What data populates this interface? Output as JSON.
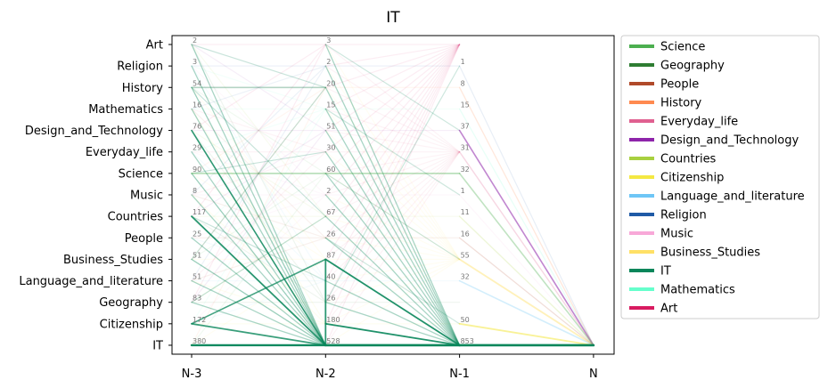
{
  "chart_data": {
    "type": "line",
    "title": "IT",
    "x": [
      "N-3",
      "N-2",
      "N-1",
      "N"
    ],
    "y_categories": [
      "Art",
      "Religion",
      "History",
      "Mathematics",
      "Design_and_Technology",
      "Everyday_life",
      "Science",
      "Music",
      "Countries",
      "People",
      "Business_Studies",
      "Language_and_literature",
      "Geography",
      "Citizenship",
      "IT"
    ],
    "counts": [
      {
        "subject": "Art",
        "N-3": "2",
        "N-2": "3",
        "N-1": ""
      },
      {
        "subject": "Religion",
        "N-3": "3",
        "N-2": "2",
        "N-1": "1"
      },
      {
        "subject": "History",
        "N-3": "54",
        "N-2": "20",
        "N-1": "8"
      },
      {
        "subject": "Mathematics",
        "N-3": "16",
        "N-2": "15",
        "N-1": "15"
      },
      {
        "subject": "Design_and_Technology",
        "N-3": "76",
        "N-2": "51",
        "N-1": "37"
      },
      {
        "subject": "Everyday_life",
        "N-3": "29",
        "N-2": "30",
        "N-1": "31"
      },
      {
        "subject": "Science",
        "N-3": "90",
        "N-2": "60",
        "N-1": "32"
      },
      {
        "subject": "Music",
        "N-3": "8",
        "N-2": "2",
        "N-1": "1"
      },
      {
        "subject": "Countries",
        "N-3": "117",
        "N-2": "67",
        "N-1": "11"
      },
      {
        "subject": "People",
        "N-3": "25",
        "N-2": "26",
        "N-1": "16"
      },
      {
        "subject": "Business_Studies",
        "N-3": "51",
        "N-2": "87",
        "N-1": "55"
      },
      {
        "subject": "Language_and_literature",
        "N-3": "51",
        "N-2": "40",
        "N-1": "32"
      },
      {
        "subject": "Geography",
        "N-3": "83",
        "N-2": "26",
        "N-1": ""
      },
      {
        "subject": "Citizenship",
        "N-3": "172",
        "N-2": "180",
        "N-1": "50"
      },
      {
        "subject": "IT",
        "N-3": "380",
        "N-2": "528",
        "N-1": "853"
      }
    ],
    "legend": [
      {
        "name": "Science",
        "color": "#4caf50"
      },
      {
        "name": "Geography",
        "color": "#2e7d32"
      },
      {
        "name": "People",
        "color": "#b04a2a"
      },
      {
        "name": "History",
        "color": "#ff8a50"
      },
      {
        "name": "Everyday_life",
        "color": "#e06090"
      },
      {
        "name": "Design_and_Technology",
        "color": "#8e24aa"
      },
      {
        "name": "Countries",
        "color": "#a8d040"
      },
      {
        "name": "Citizenship",
        "color": "#f4e842"
      },
      {
        "name": "Language_and_literature",
        "color": "#6ec6f6"
      },
      {
        "name": "Religion",
        "color": "#1f5aa6"
      },
      {
        "name": "Music",
        "color": "#f8a8d8"
      },
      {
        "name": "Business_Studies",
        "color": "#ffe066"
      },
      {
        "name": "IT",
        "color": "#08865a"
      },
      {
        "name": "Mathematics",
        "color": "#66ffcc"
      },
      {
        "name": "Art",
        "color": "#d81b60"
      }
    ],
    "legend_position": "right",
    "grid": false
  }
}
